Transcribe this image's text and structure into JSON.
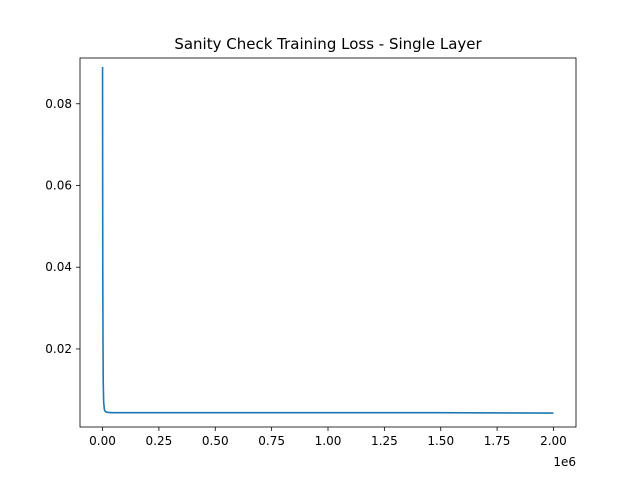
{
  "chart_data": {
    "type": "line",
    "title": "Sanity Check Training Loss - Single Layer",
    "xlabel": "",
    "ylabel": "",
    "x_offset_text": "1e6",
    "xlim": [
      -100000,
      2100000
    ],
    "ylim": [
      0.0009,
      0.0912
    ],
    "x_ticks": [
      0,
      250000,
      500000,
      750000,
      1000000,
      1250000,
      1500000,
      1750000,
      2000000
    ],
    "x_tick_labels": [
      "0.00",
      "0.25",
      "0.50",
      "0.75",
      "1.00",
      "1.25",
      "1.50",
      "1.75",
      "2.00"
    ],
    "y_ticks": [
      0.02,
      0.04,
      0.06,
      0.08
    ],
    "y_tick_labels": [
      "0.02",
      "0.04",
      "0.06",
      "0.08"
    ],
    "grid": false,
    "legend": "none",
    "series": [
      {
        "color": "#1f77b4",
        "x": [
          0,
          500,
          1000,
          2000,
          3000,
          5000,
          8000,
          12000,
          20000,
          40000,
          100000,
          500000,
          1000000,
          1500000,
          2000000
        ],
        "y": [
          0.089,
          0.06,
          0.04,
          0.022,
          0.012,
          0.007,
          0.0052,
          0.0047,
          0.0045,
          0.0044,
          0.0044,
          0.0044,
          0.0044,
          0.0044,
          0.0043
        ]
      }
    ]
  }
}
